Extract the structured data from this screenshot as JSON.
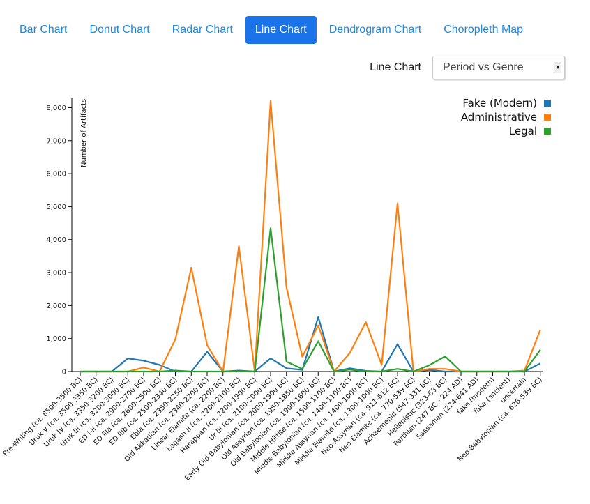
{
  "nav": {
    "tabs": [
      {
        "label": "Bar Chart",
        "active": false
      },
      {
        "label": "Donut Chart",
        "active": false
      },
      {
        "label": "Radar Chart",
        "active": false
      },
      {
        "label": "Line Chart",
        "active": true
      },
      {
        "label": "Dendrogram Chart",
        "active": false
      },
      {
        "label": "Choropleth Map",
        "active": false
      }
    ]
  },
  "picker": {
    "label": "Line Chart",
    "selected": "Period vs Genre"
  },
  "chart_data": {
    "type": "line",
    "ylabel": "Number of Artifacts",
    "ylim": [
      0,
      8200
    ],
    "yticks": [
      0,
      1000,
      2000,
      3000,
      4000,
      5000,
      6000,
      7000,
      8000
    ],
    "ytick_labels": [
      "0",
      "1,000",
      "2,000",
      "3,000",
      "4,000",
      "5,000",
      "6,000",
      "7,000",
      "8,000"
    ],
    "legend_position": "top-right",
    "categories": [
      "Pre-Writing (ca. 8500-3500 BC)",
      "Uruk V (ca. 3500-3350 BC)",
      "Uruk IV (ca. 3350-3200 BC)",
      "Uruk III (ca. 3200-3000 BC)",
      "ED I-II (ca. 2900-2700 BC)",
      "ED IIIa (ca. 2600-2500 BC)",
      "ED IIIb (ca. 2500-2340 BC)",
      "Ebla (ca. 2350-2250 BC)",
      "Old Akkadian (ca. 2340-2200 BC)",
      "Linear Elamite (ca. 2200 BC)",
      "Lagash II (ca. 2200-2100 BC)",
      "Harappan (ca. 2200-1900 BC)",
      "Ur III (ca. 2100-2000 BC)",
      "Early Old Babylonian (ca. 2000-1900 BC)",
      "Old Assyrian (ca. 1950-1850 BC)",
      "Old Babylonian (ca. 1900-1600 BC)",
      "Middle Hittite (ca. 1500-1100 BC)",
      "Middle Babylonian (ca. 1400-1100 BC)",
      "Middle Assyrian (ca. 1400-1000 BC)",
      "Middle Elamite (ca. 1300-1000 BC)",
      "Neo-Assyrian (ca. 911-612 BC)",
      "Neo-Elamite (ca. 770-539 BC)",
      "Achaemenid (547-331 BC)",
      "Hellenistic (323-63 BC)",
      "Parthian (247 BC - 224 AD)",
      "Sassanian (224-641 AD)",
      "fake (modern)",
      "fake (ancient)",
      "uncertain",
      "Neo-Babylonian (ca. 626-539 BC)"
    ],
    "series": [
      {
        "name": "Fake (Modern)",
        "color": "#1f77b4",
        "values": [
          0,
          0,
          0,
          400,
          330,
          200,
          0,
          0,
          600,
          0,
          30,
          0,
          400,
          100,
          50,
          1650,
          0,
          100,
          20,
          0,
          830,
          0,
          50,
          0,
          0,
          0,
          0,
          0,
          0,
          250
        ]
      },
      {
        "name": "Administrative",
        "color": "#ff7f0e",
        "values": [
          0,
          0,
          0,
          0,
          120,
          0,
          980,
          3150,
          800,
          0,
          3800,
          0,
          8200,
          2550,
          450,
          1400,
          0,
          570,
          1500,
          200,
          5100,
          0,
          80,
          80,
          0,
          0,
          0,
          0,
          30,
          1270
        ]
      },
      {
        "name": "Legal",
        "color": "#2ca02c",
        "values": [
          0,
          0,
          0,
          0,
          0,
          0,
          30,
          0,
          0,
          0,
          0,
          0,
          4350,
          300,
          80,
          920,
          0,
          60,
          0,
          0,
          80,
          0,
          190,
          460,
          0,
          0,
          0,
          0,
          0,
          660
        ]
      }
    ]
  }
}
